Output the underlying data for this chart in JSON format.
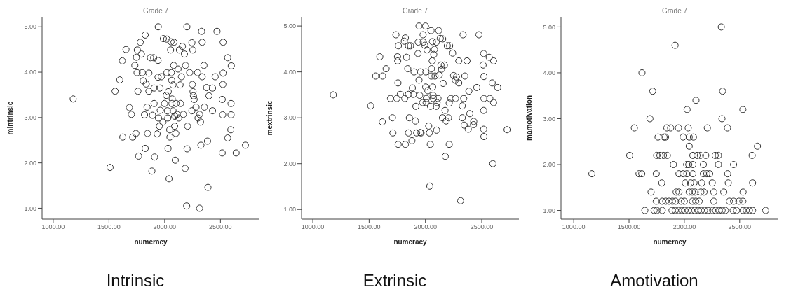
{
  "chart_data": [
    {
      "type": "scatter",
      "title": "Grade 7",
      "xlabel": "numeracy",
      "ylabel": "mintrinsic",
      "annotations": [
        "Intrinsic"
      ],
      "color": "#333333",
      "marker": "circle",
      "xlim": [
        900,
        2850
      ],
      "ylim": [
        0.76,
        5.22
      ],
      "xticks": [
        {
          "value": 1000,
          "label": "1000.00"
        },
        {
          "value": 1500,
          "label": "1500.00"
        },
        {
          "value": 2000,
          "label": "2000.00"
        },
        {
          "value": 2500,
          "label": "2500.00"
        }
      ],
      "yticks": [
        {
          "value": 1,
          "label": "1.00"
        },
        {
          "value": 2,
          "label": "2.00"
        },
        {
          "value": 3,
          "label": "3.00"
        },
        {
          "value": 4,
          "label": "4.00"
        },
        {
          "value": 5,
          "label": "5.00"
        }
      ],
      "x": [
        1179,
        1510,
        1555,
        1597,
        1620,
        1624,
        1653,
        1683,
        1701,
        1713,
        1742,
        1732,
        1746,
        1752,
        1754,
        1760,
        1766,
        1781,
        1791,
        1799,
        1807,
        1819,
        1825,
        1825,
        1834,
        1842,
        1846,
        1858,
        1858,
        1872,
        1885,
        1891,
        1901,
        1905,
        1905,
        1909,
        1932,
        1940,
        1940,
        1942,
        1944,
        1952,
        1958,
        1960,
        1970,
        1984,
        1988,
        1998,
        2014,
        2018,
        2020,
        2024,
        2028,
        2030,
        2032,
        2039,
        2045,
        2047,
        2053,
        2057,
        2059,
        2063,
        2065,
        2067,
        2075,
        2075,
        2081,
        2083,
        2089,
        2089,
        2095,
        2100,
        2102,
        2110,
        2120,
        2126,
        2132,
        2138,
        2142,
        2150,
        2159,
        2167,
        2177,
        2183,
        2187,
        2199,
        2201,
        2205,
        2224,
        2244,
        2244,
        2248,
        2252,
        2254,
        2258,
        2264,
        2281,
        2295,
        2299,
        2313,
        2321,
        2325,
        2331,
        2336,
        2336,
        2352,
        2356,
        2376,
        2384,
        2388,
        2397,
        2429,
        2429,
        2453,
        2469,
        2516,
        2516,
        2520,
        2522,
        2524,
        2524,
        2565,
        2565,
        2593,
        2595,
        2595,
        2597,
        2641,
        2724,
        2197,
        2313
      ],
      "values": [
        3.41,
        1.9,
        3.58,
        3.83,
        4.25,
        2.57,
        4.5,
        3.22,
        3.07,
        2.57,
        2.65,
        4.15,
        4.33,
        3.99,
        4.49,
        3.58,
        2.15,
        4.66,
        4.4,
        3.99,
        3.81,
        3.06,
        2.32,
        4.82,
        3.74,
        3.23,
        2.65,
        3.98,
        3.58,
        4.32,
        1.82,
        3.05,
        4.32,
        3.31,
        3.65,
        2.13,
        2.64,
        4.26,
        3.89,
        5,
        2.99,
        2.81,
        3.65,
        3.16,
        3.9,
        2.9,
        4.74,
        3.31,
        3.49,
        4.73,
        3.99,
        3.15,
        2.99,
        2.32,
        3.57,
        1.65,
        2.73,
        2.57,
        4.49,
        4.67,
        3.99,
        3.82,
        3.31,
        3.41,
        3.72,
        3.15,
        4.15,
        4.66,
        2.81,
        3.03,
        2.06,
        2.65,
        3.31,
        3.07,
        4.07,
        2.99,
        4.49,
        3.72,
        3.31,
        3.9,
        4.57,
        3.07,
        4.4,
        1.88,
        4.15,
        5,
        2.31,
        2.81,
        3.99,
        4.65,
        3.15,
        3.73,
        4.49,
        3.57,
        3.48,
        3.4,
        3.23,
        3.99,
        2.99,
        3.07,
        2.9,
        2.39,
        4.9,
        4.66,
        3.9,
        4.15,
        3.23,
        3.66,
        2.48,
        1.46,
        3.48,
        3.15,
        3.65,
        3.9,
        4.9,
        3.4,
        2.22,
        3.06,
        3.73,
        3.98,
        4.66,
        2.55,
        4.32,
        2.73,
        3.31,
        3.06,
        4.14,
        2.22,
        2.39,
        1.05,
        1
      ]
    },
    {
      "type": "scatter",
      "title": "Grade 7",
      "xlabel": "numeracy",
      "ylabel": "mextrinsic",
      "annotations": [
        "Extrinsic"
      ],
      "color": "#333333",
      "marker": "circle",
      "xlim": [
        900,
        2830
      ],
      "ylim": [
        0.79,
        5.2
      ],
      "xticks": [
        {
          "value": 1000,
          "label": "1000.00"
        },
        {
          "value": 1500,
          "label": "1500.00"
        },
        {
          "value": 2000,
          "label": "2000.00"
        },
        {
          "value": 2500,
          "label": "2500.00"
        }
      ],
      "yticks": [
        {
          "value": 1,
          "label": "1.00"
        },
        {
          "value": 2,
          "label": "2.00"
        },
        {
          "value": 3,
          "label": "3.00"
        },
        {
          "value": 4,
          "label": "4.00"
        },
        {
          "value": 5,
          "label": "5.00"
        }
      ],
      "x": [
        1182,
        1514,
        1558,
        1620,
        1595,
        1617,
        1651,
        1690,
        1707,
        1711,
        1738,
        1746,
        1752,
        1756,
        1758,
        1760,
        1754,
        1777,
        1812,
        1822,
        1816,
        1822,
        1832,
        1843,
        1849,
        1849,
        1849,
        1857,
        1868,
        1880,
        1884,
        1892,
        1899,
        1911,
        1915,
        1922,
        1934,
        1936,
        1943,
        1943,
        1949,
        1953,
        1957,
        1961,
        1975,
        1979,
        1981,
        1994,
        2000,
        2002,
        2004,
        2006,
        2008,
        2014,
        2021,
        2029,
        2035,
        2039,
        2043,
        2045,
        2050,
        2052,
        2054,
        2060,
        2062,
        2064,
        2068,
        2070,
        2074,
        2080,
        2085,
        2095,
        2097,
        2099,
        2103,
        2112,
        2118,
        2122,
        2132,
        2138,
        2143,
        2151,
        2153,
        2157,
        2168,
        2174,
        2176,
        2184,
        2194,
        2205,
        2211,
        2211,
        2215,
        2226,
        2242,
        2250,
        2265,
        2267,
        2275,
        2296,
        2296,
        2312,
        2327,
        2327,
        2334,
        2340,
        2344,
        2350,
        2369,
        2380,
        2386,
        2394,
        2427,
        2429,
        2456,
        2475,
        2512,
        2517,
        2519,
        2519,
        2517,
        2517,
        2519,
        2566,
        2572,
        2593,
        2605,
        2605,
        2599,
        2642,
        2725
      ],
      "values": [
        3.5,
        3.26,
        3.91,
        3.91,
        4.33,
        2.91,
        4.07,
        3.42,
        3,
        2.67,
        4.81,
        3.42,
        4.33,
        3.76,
        2.42,
        4.57,
        4.24,
        3.51,
        4.67,
        4.74,
        3.42,
        2.42,
        4.32,
        4.07,
        2.67,
        4.57,
        3.51,
        3,
        4.57,
        2.5,
        3.65,
        3.51,
        4,
        2.93,
        3.25,
        2.67,
        4.4,
        4.65,
        3.82,
        5,
        3.49,
        2.68,
        4,
        2.67,
        3.33,
        4.81,
        4.65,
        4.58,
        5,
        3.67,
        4,
        3.33,
        3.42,
        4.48,
        3.59,
        2.82,
        2.67,
        1.51,
        2.42,
        3.25,
        4.9,
        3.91,
        4.07,
        4.24,
        4.66,
        3.67,
        3.49,
        3.42,
        4.38,
        4.49,
        3.91,
        3.25,
        4.65,
        2.73,
        3.33,
        3.42,
        4.9,
        3.93,
        4.73,
        4.15,
        4.06,
        3,
        4.72,
        3.75,
        4.15,
        3.16,
        2.16,
        2.93,
        4.57,
        3,
        3.32,
        2.42,
        4.57,
        3.42,
        4.41,
        3.92,
        3.82,
        3.42,
        3.89,
        3.76,
        4.24,
        1.19,
        3,
        3.26,
        4.81,
        3.42,
        2.84,
        3.91,
        4.24,
        2.75,
        3.58,
        3.09,
        2.85,
        2.92,
        3.66,
        4.81,
        4.15,
        4.4,
        3.9,
        3.42,
        3.16,
        2.75,
        2.59,
        4.32,
        3.42,
        3.76,
        4.24,
        3.33,
        2,
        3.66,
        2.74
      ]
    },
    {
      "type": "scatter",
      "title": "Grade 7",
      "xlabel": "numeracy",
      "ylabel": "mamotivation",
      "annotations": [
        "Amotivation"
      ],
      "color": "#333333",
      "marker": "circle",
      "xlim": [
        885,
        2850
      ],
      "ylim": [
        0.81,
        5.22
      ],
      "xticks": [
        {
          "value": 1000,
          "label": "1000.00"
        },
        {
          "value": 1500,
          "label": "1500.00"
        },
        {
          "value": 2000,
          "label": "2000.00"
        },
        {
          "value": 2500,
          "label": "2500.00"
        }
      ],
      "yticks": [
        {
          "value": 1,
          "label": "1.00"
        },
        {
          "value": 2,
          "label": "2.00"
        },
        {
          "value": 3,
          "label": "3.00"
        },
        {
          "value": 4,
          "label": "4.00"
        },
        {
          "value": 5,
          "label": "5.00"
        }
      ],
      "x": [
        2334,
        1916,
        1617,
        1714,
        2346,
        2105,
        2025,
        2529,
        1689,
        2340,
        1548,
        1842,
        1876,
        1947,
        2035,
        2208,
        2390,
        1762,
        1817,
        1830,
        1989,
        2044,
        2082,
        2044,
        2661,
        1506,
        1750,
        1779,
        1811,
        1846,
        2077,
        2115,
        2145,
        2193,
        2279,
        2308,
        2613,
        1901,
        2021,
        2040,
        2077,
        2172,
        2308,
        2445,
        1164,
        1590,
        1615,
        1746,
        1951,
        1989,
        2023,
        2077,
        2172,
        2203,
        2229,
        2392,
        1796,
        2008,
        2056,
        2088,
        2157,
        2252,
        2397,
        2617,
        1699,
        1926,
        1951,
        2044,
        2071,
        2098,
        2149,
        2178,
        2266,
        2356,
        2531,
        1746,
        1800,
        1832,
        1861,
        1892,
        1920,
        1972,
        2000,
        2073,
        2103,
        2134,
        2266,
        2407,
        2445,
        2493,
        2529,
        1643,
        1727,
        1752,
        1800,
        1888,
        1918,
        1947,
        1977,
        2006,
        2035,
        2065,
        2094,
        2124,
        2153,
        2182,
        2212,
        2256,
        2283,
        2313,
        2342,
        2371,
        2441,
        2472,
        2531,
        2560,
        2588,
        2617,
        2735
      ],
      "values": [
        5,
        4.6,
        4,
        3.6,
        3.6,
        3.4,
        3.2,
        3.2,
        3,
        3,
        2.8,
        2.8,
        2.8,
        2.8,
        2.8,
        2.8,
        2.8,
        2.6,
        2.6,
        2.6,
        2.6,
        2.6,
        2.6,
        2.4,
        2.4,
        2.2,
        2.2,
        2.2,
        2.2,
        2.2,
        2.2,
        2.2,
        2.2,
        2.2,
        2.2,
        2.2,
        2.2,
        2,
        2,
        2,
        2,
        2,
        2,
        2,
        1.8,
        1.8,
        1.8,
        1.8,
        1.8,
        1.8,
        1.8,
        1.8,
        1.8,
        1.8,
        1.8,
        1.8,
        1.6,
        1.6,
        1.6,
        1.6,
        1.6,
        1.6,
        1.6,
        1.6,
        1.4,
        1.4,
        1.4,
        1.4,
        1.4,
        1.4,
        1.4,
        1.4,
        1.4,
        1.4,
        1.4,
        1.2,
        1.2,
        1.2,
        1.2,
        1.2,
        1.2,
        1.2,
        1.2,
        1.2,
        1.2,
        1.2,
        1.2,
        1.2,
        1.2,
        1.2,
        1.2,
        1,
        1,
        1,
        1,
        1,
        1,
        1,
        1,
        1,
        1,
        1,
        1,
        1,
        1,
        1,
        1,
        1,
        1,
        1,
        1,
        1,
        1,
        1,
        1,
        1,
        1,
        1,
        1
      ]
    }
  ]
}
